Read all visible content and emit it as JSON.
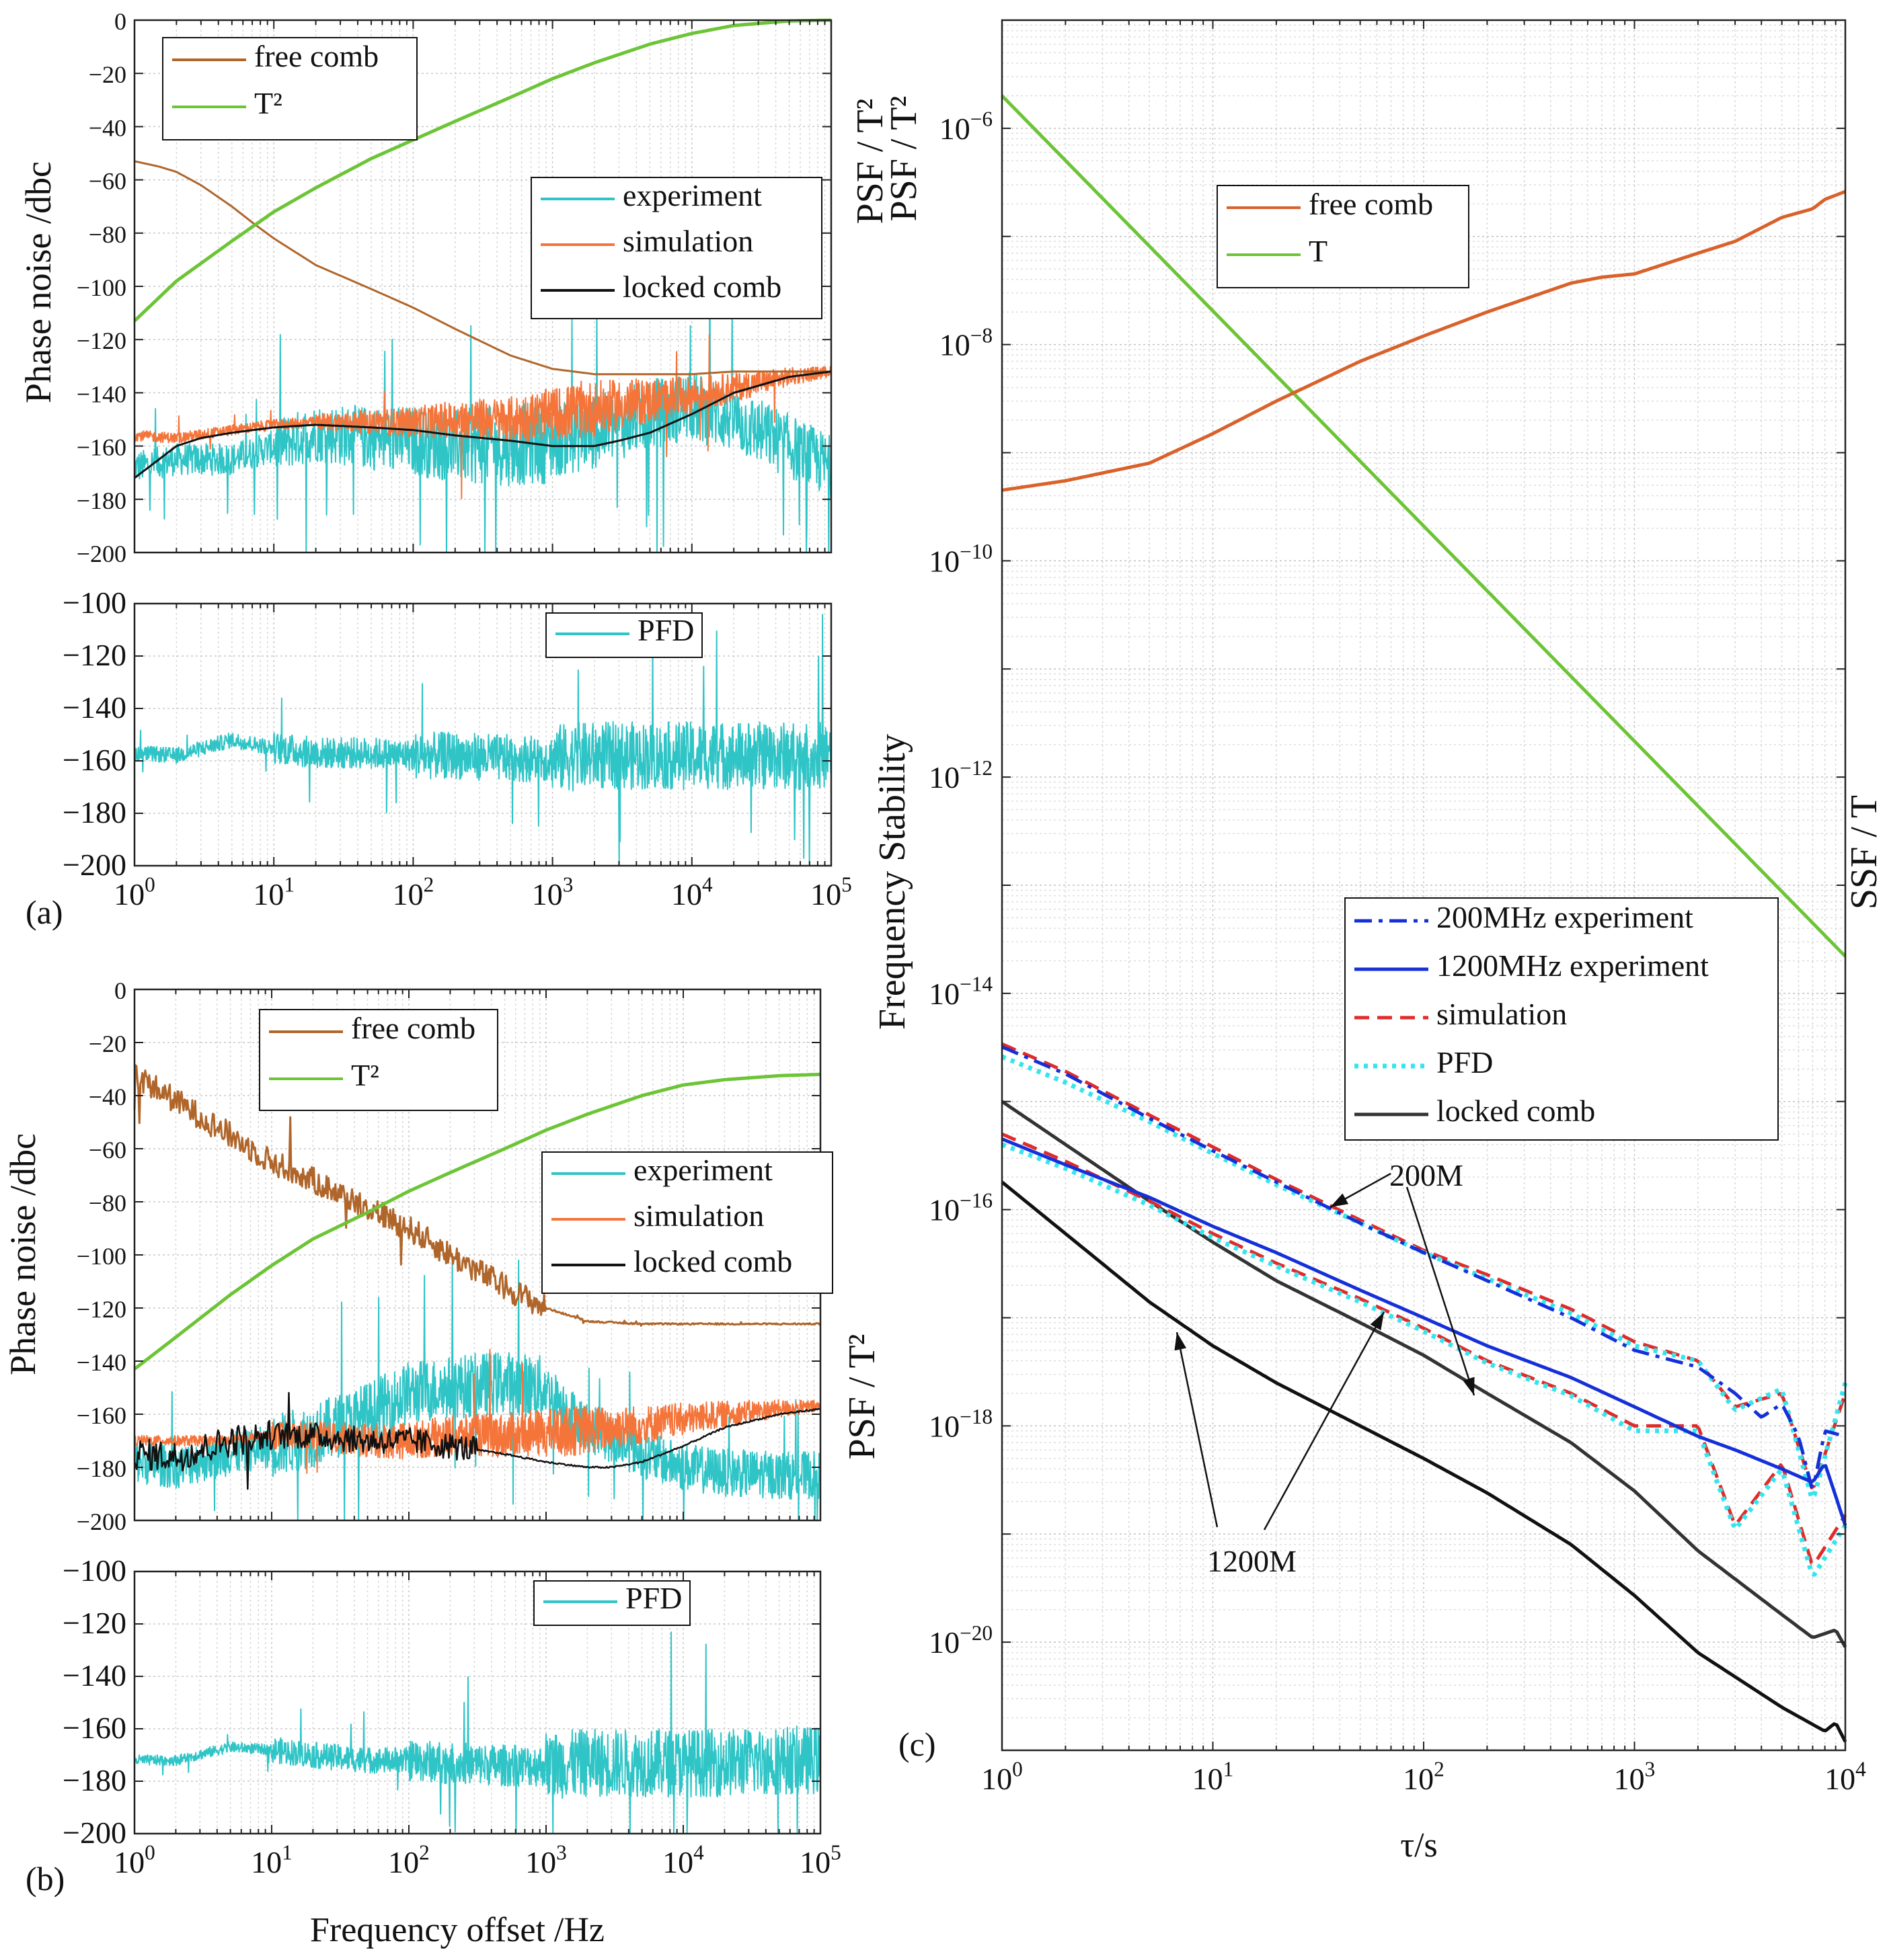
{
  "chart_data": [
    {
      "id": "a_top",
      "type": "line",
      "x_scale": "log",
      "xlim": [
        1,
        100000
      ],
      "ylim": [
        -200,
        0
      ],
      "yticks": [
        0,
        -20,
        -40,
        -60,
        -80,
        -100,
        -120,
        -140,
        -160,
        -180,
        -200
      ],
      "xticks": [
        1,
        10,
        100,
        1000,
        10000,
        100000
      ],
      "ylabel": "Phase noise /dbc",
      "right_label": "PSF / T²",
      "legends": [
        [
          "free comb",
          "T²"
        ],
        [
          "experiment",
          "simulation",
          "locked comb"
        ]
      ],
      "series": [
        {
          "name": "free comb",
          "color": "#b0662a",
          "style": "solid",
          "noisy": false,
          "x": [
            1,
            1.5,
            2,
            3,
            5,
            7,
            10,
            20,
            50,
            100,
            200,
            500,
            1000,
            2000,
            5000,
            10000,
            20000,
            50000,
            100000
          ],
          "y": [
            -53,
            -55,
            -57,
            -62,
            -70,
            -76,
            -82,
            -92,
            -101,
            -108,
            -116,
            -126,
            -131,
            -133,
            -133,
            -133,
            -132,
            -132,
            -132
          ]
        },
        {
          "name": "T²",
          "color": "#6cc436",
          "style": "solid",
          "noisy": false,
          "x": [
            1,
            2,
            5,
            10,
            20,
            50,
            100,
            200,
            500,
            1000,
            2000,
            5000,
            10000,
            20000,
            50000,
            100000
          ],
          "y": [
            -113,
            -98,
            -83,
            -72,
            -63,
            -52,
            -45,
            -38,
            -29,
            -22,
            -16,
            -9,
            -5,
            -2,
            -0.3,
            0
          ]
        },
        {
          "name": "experiment",
          "color": "#2fc4c6",
          "style": "solid",
          "noisy": true,
          "x": [
            1,
            2,
            5,
            10,
            20,
            50,
            100,
            200,
            500,
            1000,
            2000,
            5000,
            10000,
            20000,
            50000,
            100000
          ],
          "y": [
            -168,
            -165,
            -165,
            -160,
            -155,
            -157,
            -158,
            -160,
            -160,
            -158,
            -155,
            -148,
            -145,
            -150,
            -160,
            -168
          ]
        },
        {
          "name": "simulation",
          "color": "#f4743a",
          "style": "solid",
          "noisy": true,
          "x": [
            1,
            2,
            5,
            10,
            20,
            50,
            100,
            200,
            500,
            1000,
            2000,
            5000,
            10000,
            20000,
            50000,
            100000
          ],
          "y": [
            -156,
            -157,
            -154,
            -152,
            -151,
            -151,
            -151,
            -150,
            -150,
            -148,
            -146,
            -143,
            -141,
            -138,
            -134,
            -132
          ]
        },
        {
          "name": "locked comb",
          "color": "#111111",
          "style": "solid",
          "noisy": false,
          "x": [
            1,
            1.5,
            2,
            3,
            5,
            10,
            20,
            50,
            100,
            200,
            500,
            1000,
            2000,
            3000,
            5000,
            10000,
            20000,
            50000,
            100000
          ],
          "y": [
            -172,
            -165,
            -160,
            -157,
            -155,
            -153,
            -152,
            -153,
            -154,
            -156,
            -158,
            -160,
            -160,
            -158,
            -155,
            -148,
            -140,
            -134,
            -132
          ]
        }
      ]
    },
    {
      "id": "a_bottom",
      "type": "line",
      "x_scale": "log",
      "xlim": [
        1,
        100000
      ],
      "ylim": [
        -200,
        -100
      ],
      "yticks": [
        -100,
        -120,
        -140,
        -160,
        -180,
        -200
      ],
      "xticks": [
        1,
        10,
        100,
        1000,
        10000,
        100000
      ],
      "panel_label": "(a)",
      "legends": [
        [
          "PFD"
        ]
      ],
      "series": [
        {
          "name": "PFD",
          "color": "#2fc4c6",
          "style": "solid",
          "noisy": true,
          "x": [
            1,
            2,
            5,
            10,
            20,
            50,
            100,
            200,
            500,
            1000,
            2000,
            5000,
            10000,
            20000,
            50000,
            100000
          ],
          "y": [
            -157,
            -158,
            -152,
            -155,
            -157,
            -157,
            -158,
            -158,
            -159,
            -159,
            -158,
            -158,
            -158,
            -158,
            -158,
            -158
          ]
        }
      ]
    },
    {
      "id": "b_top",
      "type": "line",
      "x_scale": "log",
      "xlim": [
        1,
        100000
      ],
      "ylim": [
        -200,
        0
      ],
      "yticks": [
        0,
        -20,
        -40,
        -60,
        -80,
        -100,
        -120,
        -140,
        -160,
        -180,
        -200
      ],
      "xticks": [
        1,
        10,
        100,
        1000,
        10000,
        100000
      ],
      "ylabel": "Phase noise /dbc",
      "right_label": "PSF / T²",
      "legends": [
        [
          "free comb",
          "T²"
        ],
        [
          "experiment",
          "simulation",
          "locked comb"
        ]
      ],
      "series": [
        {
          "name": "free comb",
          "color": "#b0662a",
          "style": "solid",
          "noisy": true,
          "x": [
            1,
            2,
            5,
            10,
            20,
            50,
            100,
            200,
            500,
            1000,
            2000,
            5000,
            10000,
            20000,
            50000,
            100000
          ],
          "y": [
            -32,
            -42,
            -55,
            -65,
            -72,
            -82,
            -90,
            -100,
            -112,
            -120,
            -125,
            -126,
            -126,
            -126,
            -126,
            -126
          ]
        },
        {
          "name": "T²",
          "color": "#6cc436",
          "style": "solid",
          "noisy": false,
          "x": [
            1,
            2,
            5,
            10,
            20,
            50,
            100,
            200,
            500,
            1000,
            2000,
            5000,
            10000,
            20000,
            50000,
            100000
          ],
          "y": [
            -143,
            -131,
            -115,
            -104,
            -94,
            -84,
            -76,
            -69,
            -60,
            -53,
            -47,
            -40,
            -36,
            -34,
            -32.5,
            -32
          ]
        },
        {
          "name": "experiment",
          "color": "#2fc4c6",
          "style": "solid",
          "noisy": true,
          "x": [
            1,
            2,
            5,
            10,
            20,
            50,
            100,
            200,
            500,
            1000,
            2000,
            5000,
            10000,
            20000,
            50000,
            100000
          ],
          "y": [
            -178,
            -180,
            -175,
            -172,
            -168,
            -160,
            -152,
            -150,
            -148,
            -150,
            -165,
            -175,
            -180,
            -182,
            -183,
            -183
          ]
        },
        {
          "name": "simulation",
          "color": "#f4743a",
          "style": "solid",
          "noisy": true,
          "x": [
            1,
            2,
            5,
            10,
            20,
            50,
            100,
            200,
            500,
            1000,
            2000,
            5000,
            10000,
            20000,
            50000,
            100000
          ],
          "y": [
            -170,
            -170,
            -170,
            -168,
            -168,
            -170,
            -170,
            -168,
            -168,
            -167,
            -166,
            -164,
            -162,
            -160,
            -158,
            -157
          ]
        },
        {
          "name": "locked comb",
          "color": "#111111",
          "style": "solid",
          "noisy": true,
          "x": [
            1,
            2,
            5,
            10,
            20,
            50,
            100,
            200,
            500,
            1000,
            2000,
            3000,
            5000,
            10000,
            20000,
            50000,
            100000
          ],
          "y": [
            -175,
            -176,
            -170,
            -168,
            -168,
            -170,
            -170,
            -172,
            -175,
            -178,
            -180,
            -180,
            -178,
            -172,
            -165,
            -160,
            -158
          ]
        }
      ]
    },
    {
      "id": "b_bottom",
      "type": "line",
      "x_scale": "log",
      "xlim": [
        1,
        100000
      ],
      "ylim": [
        -200,
        -100
      ],
      "yticks": [
        -100,
        -120,
        -140,
        -160,
        -180,
        -200
      ],
      "xticks": [
        1,
        10,
        100,
        1000,
        10000,
        100000
      ],
      "xlabel": "Frequency offset /Hz",
      "panel_label": "(b)",
      "legends": [
        [
          "PFD"
        ]
      ],
      "series": [
        {
          "name": "PFD",
          "color": "#2fc4c6",
          "style": "solid",
          "noisy": true,
          "x": [
            1,
            2,
            5,
            10,
            20,
            50,
            100,
            200,
            500,
            1000,
            2000,
            5000,
            10000,
            20000,
            50000,
            100000
          ],
          "y": [
            -172,
            -172,
            -167,
            -168,
            -170,
            -172,
            -172,
            -173,
            -174,
            -174,
            -173,
            -173,
            -173,
            -173,
            -172,
            -172
          ]
        }
      ]
    },
    {
      "id": "c",
      "type": "line",
      "x_scale": "log",
      "y_scale": "log",
      "xlim": [
        1,
        10000
      ],
      "ylim": [
        1e-21,
        1e-05
      ],
      "xticks": [
        1,
        10,
        100,
        1000,
        10000
      ],
      "yticks": [
        1e-06,
        1e-08,
        1e-10,
        1e-12,
        1e-14,
        1e-16,
        1e-18,
        1e-20
      ],
      "xlabel": "τ/s",
      "ylabel": "Frequency Stability",
      "right_label_top": "PSF / T²",
      "right_label_bottom": "SSF / T",
      "panel_label": "(c)",
      "legends": [
        [
          "free comb",
          "T"
        ],
        [
          "200MHz experiment",
          "1200MHz experiment",
          "simulation",
          "PFD",
          "locked comb"
        ]
      ],
      "annotations": [
        "200M",
        "1200M"
      ],
      "series": [
        {
          "name": "free comb",
          "color": "#d9622b",
          "style": "solid",
          "x": [
            1,
            2,
            5,
            10,
            20,
            50,
            100,
            200,
            500,
            700,
            1000,
            2000,
            3000,
            5000,
            7000,
            8000,
            10000
          ],
          "y": [
            4.5e-10,
            5.5e-10,
            8e-10,
            1.5e-09,
            3e-09,
            7e-09,
            1.2e-08,
            2e-08,
            3.7e-08,
            4.2e-08,
            4.5e-08,
            7e-08,
            9e-08,
            1.5e-07,
            1.8e-07,
            2.2e-07,
            2.6e-07
          ]
        },
        {
          "name": "T",
          "color": "#6cc436",
          "style": "solid",
          "x": [
            1,
            10000
          ],
          "y": [
            2e-06,
            2.2e-14
          ]
        },
        {
          "name": "200MHz experiment",
          "color": "#1530d8",
          "style": "dashdot",
          "x": [
            1,
            2,
            5,
            10,
            20,
            50,
            100,
            200,
            500,
            1000,
            2000,
            3000,
            4000,
            5000,
            6000,
            7000,
            8000,
            10000
          ],
          "y": [
            3.2e-15,
            1.8e-15,
            7e-16,
            3.5e-16,
            1.8e-16,
            7.5e-17,
            4e-17,
            2.2e-17,
            1e-17,
            5e-18,
            3.5e-18,
            2e-18,
            1.2e-18,
            1.6e-18,
            8e-19,
            2.5e-19,
            9e-19,
            8e-19
          ]
        },
        {
          "name": "1200MHz experiment",
          "color": "#1530d8",
          "style": "solid",
          "x": [
            1,
            2,
            5,
            10,
            20,
            50,
            100,
            200,
            500,
            1000,
            2000,
            3000,
            5000,
            7000,
            8000,
            10000
          ],
          "y": [
            4.5e-16,
            2.6e-16,
            1.3e-16,
            7e-17,
            4e-17,
            1.8e-17,
            1e-17,
            5.5e-18,
            2.8e-18,
            1.5e-18,
            8e-19,
            6e-19,
            4e-19,
            3e-19,
            4.5e-19,
            1.2e-19
          ]
        },
        {
          "name": "simulation 200M",
          "color": "#e02b2b",
          "style": "dashed",
          "x": [
            1,
            2,
            5,
            10,
            20,
            50,
            100,
            200,
            500,
            1000,
            2000,
            3000,
            5000,
            7000,
            10000
          ],
          "y": [
            3.4e-15,
            1.9e-15,
            7.5e-16,
            3.8e-16,
            1.9e-16,
            8e-17,
            4.2e-17,
            2.5e-17,
            1.2e-17,
            6e-18,
            4e-18,
            1.5e-18,
            2e-18,
            2.5e-19,
            2e-18
          ]
        },
        {
          "name": "simulation 1200M",
          "color": "#e02b2b",
          "style": "dashed",
          "x": [
            1,
            2,
            5,
            10,
            20,
            50,
            100,
            200,
            500,
            1000,
            2000,
            3000,
            5000,
            7000,
            10000
          ],
          "y": [
            5e-16,
            2.8e-16,
            1.2e-16,
            6e-17,
            3.2e-17,
            1.5e-17,
            8e-18,
            4e-18,
            2e-18,
            1e-18,
            1e-18,
            1.2e-19,
            4.5e-19,
            5e-20,
            1.5e-19
          ]
        },
        {
          "name": "PFD 200M",
          "color": "#35e5ee",
          "style": "dotted",
          "x": [
            1,
            2,
            5,
            10,
            20,
            50,
            100,
            200,
            500,
            1000,
            2000,
            3000,
            5000,
            7000,
            10000
          ],
          "y": [
            2.6e-15,
            1.5e-15,
            6.5e-16,
            3.3e-16,
            1.7e-16,
            7.5e-17,
            4e-17,
            2.3e-17,
            1.1e-17,
            5.5e-18,
            4e-18,
            1.4e-18,
            2.2e-18,
            2e-19,
            2.5e-18
          ]
        },
        {
          "name": "PFD 1200M",
          "color": "#35e5ee",
          "style": "dotted",
          "x": [
            1,
            2,
            5,
            10,
            20,
            50,
            100,
            200,
            500,
            1000,
            2000,
            3000,
            5000,
            7000,
            10000
          ],
          "y": [
            4e-16,
            2.4e-16,
            1.1e-16,
            5.5e-17,
            3e-17,
            1.4e-17,
            7.5e-18,
            3.8e-18,
            1.9e-18,
            9e-19,
            9e-19,
            1.1e-19,
            4e-19,
            4e-20,
            1.2e-19
          ]
        },
        {
          "name": "locked comb 200M",
          "color": "#333333",
          "style": "solid",
          "x": [
            1,
            2,
            5,
            10,
            20,
            50,
            100,
            200,
            500,
            1000,
            2000,
            5000,
            7000,
            8000,
            9000,
            10000
          ],
          "y": [
            1e-15,
            4e-16,
            1.2e-16,
            5e-17,
            2.2e-17,
            9e-18,
            4.5e-18,
            2e-18,
            7e-19,
            2.5e-19,
            7e-20,
            1.8e-20,
            1.1e-20,
            1.2e-20,
            1.3e-20,
            9e-21
          ]
        },
        {
          "name": "locked comb 1200M",
          "color": "#111111",
          "style": "solid",
          "x": [
            1,
            2,
            5,
            10,
            20,
            50,
            100,
            200,
            500,
            1000,
            2000,
            5000,
            8000,
            9000,
            10000
          ],
          "y": [
            1.8e-16,
            6e-17,
            1.4e-17,
            5.5e-18,
            2.5e-18,
            1e-18,
            5e-19,
            2.4e-19,
            8e-20,
            2.7e-20,
            8e-21,
            2.5e-21,
            1.5e-21,
            1.8e-21,
            1.2e-21
          ]
        }
      ]
    }
  ]
}
